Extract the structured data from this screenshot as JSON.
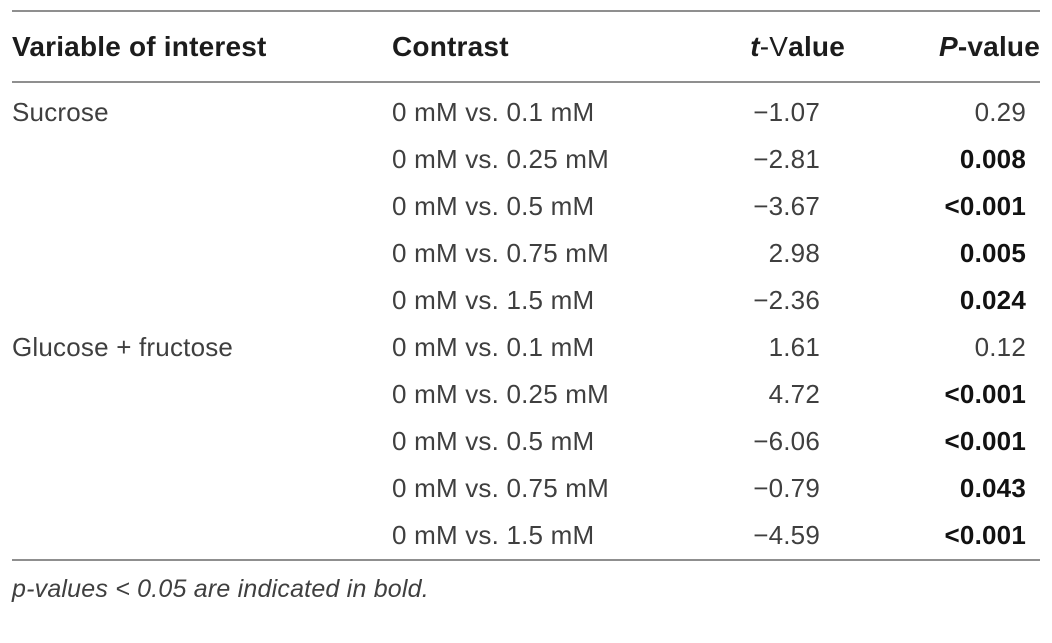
{
  "colors": {
    "rule": "#8f8f8f",
    "header_text": "#1c1c1c",
    "body_text": "#3f3f3f",
    "bold_text": "#121212"
  },
  "table": {
    "header": {
      "variable": "Variable of interest",
      "contrast": "Contrast",
      "t_italic": "t",
      "t_thin": "-V",
      "t_bold": "alue",
      "p_italic": "P",
      "p_bold": "-value"
    },
    "rows": [
      {
        "variable": "Sucrose",
        "contrast": "0 mM vs. 0.1 mM",
        "t": "−1.07",
        "p": "0.29",
        "p_bold": false
      },
      {
        "variable": "",
        "contrast": "0 mM vs. 0.25 mM",
        "t": "−2.81",
        "p": "0.008",
        "p_bold": true
      },
      {
        "variable": "",
        "contrast": "0 mM vs. 0.5 mM",
        "t": "−3.67",
        "p": "<0.001",
        "p_bold": true
      },
      {
        "variable": "",
        "contrast": "0 mM vs. 0.75 mM",
        "t": "2.98",
        "p": "0.005",
        "p_bold": true
      },
      {
        "variable": "",
        "contrast": "0 mM vs. 1.5 mM",
        "t": "−2.36",
        "p": "0.024",
        "p_bold": true
      },
      {
        "variable": "Glucose + fructose",
        "contrast": "0 mM vs. 0.1 mM",
        "t": "1.61",
        "p": "0.12",
        "p_bold": false
      },
      {
        "variable": "",
        "contrast": "0 mM vs. 0.25 mM",
        "t": "4.72",
        "p": "<0.001",
        "p_bold": true
      },
      {
        "variable": "",
        "contrast": "0 mM vs. 0.5 mM",
        "t": "−6.06",
        "p": "<0.001",
        "p_bold": true
      },
      {
        "variable": "",
        "contrast": "0 mM vs. 0.75 mM",
        "t": "−0.79",
        "p": "0.043",
        "p_bold": true
      },
      {
        "variable": "",
        "contrast": "0 mM vs. 1.5 mM",
        "t": "−4.59",
        "p": "<0.001",
        "p_bold": true
      }
    ],
    "footnote": "p-values < 0.05 are indicated in bold."
  }
}
